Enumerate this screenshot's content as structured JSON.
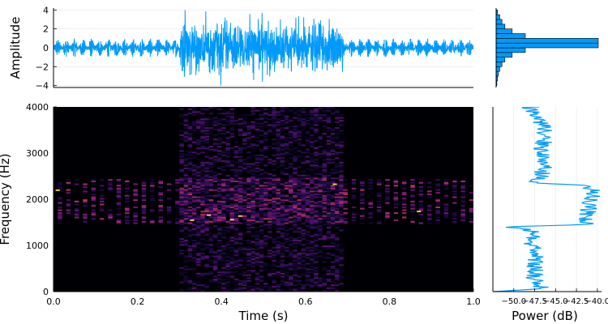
{
  "chart_data": [
    {
      "id": "waveform",
      "type": "line",
      "xlabel": "",
      "ylabel": "Amplitude",
      "xlim": [
        0,
        1
      ],
      "ylim": [
        -4.2,
        4.2
      ],
      "y_ticks": [
        -4,
        -2,
        0,
        2,
        4
      ],
      "y_tick_labels": [
        "−4",
        "−2",
        "0",
        "2",
        "4"
      ],
      "grid": true,
      "color": "#009AFA",
      "segments": [
        {
          "t_start": 0.0,
          "t_end": 0.3,
          "kind": "pulsed tones",
          "peak_amplitude": 1.0
        },
        {
          "t_start": 0.3,
          "t_end": 0.69,
          "kind": "noise burst",
          "peak_amplitude": 4.0
        },
        {
          "t_start": 0.69,
          "t_end": 1.0,
          "kind": "pulsed tones",
          "peak_amplitude": 1.0
        }
      ]
    },
    {
      "id": "amplitude-histogram",
      "type": "bar",
      "orientation": "horizontal",
      "bin_edges": [
        -4,
        -3.5,
        -3,
        -2.5,
        -2,
        -1.5,
        -1,
        -0.5,
        0,
        0.5,
        1,
        1.5,
        2,
        2.5,
        3,
        3.5,
        4
      ],
      "counts": [
        1,
        2,
        3,
        5,
        8,
        12,
        22,
        40,
        140,
        140,
        40,
        22,
        12,
        8,
        5,
        2
      ],
      "color": "#009AFA"
    },
    {
      "id": "spectrogram",
      "type": "heatmap",
      "xlabel": "Time (s)",
      "ylabel": "Frequency (Hz)",
      "xlim": [
        0,
        1
      ],
      "ylim": [
        0,
        4000
      ],
      "x_ticks": [
        0,
        0.2,
        0.4,
        0.6,
        0.8,
        1.0
      ],
      "x_tick_labels": [
        "0.0",
        "0.2",
        "0.4",
        "0.6",
        "0.8",
        "1.0"
      ],
      "y_ticks": [
        0,
        1000,
        2000,
        3000,
        4000
      ],
      "y_tick_labels": [
        "0",
        "1000",
        "2000",
        "3000",
        "4000"
      ],
      "colormap": "inferno",
      "background_color": "#000004",
      "hot_cells": [
        {
          "t": 0.005,
          "f": 2180
        },
        {
          "t": 0.325,
          "f": 1530
        },
        {
          "t": 0.365,
          "f": 1640
        },
        {
          "t": 0.42,
          "f": 1540
        },
        {
          "t": 0.44,
          "f": 1620
        },
        {
          "t": 0.665,
          "f": 2310
        },
        {
          "t": 0.865,
          "f": 1720
        }
      ]
    },
    {
      "id": "power-spectrum",
      "type": "line",
      "xlabel": "Power (dB)",
      "ylabel": "",
      "orientation": "vertical",
      "x_tick_labels": [
        "−50.0",
        "−47.5",
        "−45.0",
        "−42.5",
        "−40.0"
      ],
      "x_ticks": [
        -50,
        -47.5,
        -45,
        -42.5,
        -40
      ],
      "xlim": [
        -52.5,
        -39.5
      ],
      "ylim": [
        0,
        4000
      ],
      "grid": true,
      "color": "#009AFA",
      "profile": [
        {
          "f": 0,
          "p": -52.4
        },
        {
          "f": 60,
          "p": -46.8
        },
        {
          "f": 300,
          "p": -47.6
        },
        {
          "f": 700,
          "p": -47.3
        },
        {
          "f": 1100,
          "p": -47.8
        },
        {
          "f": 1350,
          "p": -48.0
        },
        {
          "f": 1400,
          "p": -51.5
        },
        {
          "f": 1450,
          "p": -41.5
        },
        {
          "f": 1700,
          "p": -41.2
        },
        {
          "f": 2000,
          "p": -40.8
        },
        {
          "f": 2200,
          "p": -40.6
        },
        {
          "f": 2300,
          "p": -41.5
        },
        {
          "f": 2350,
          "p": -47.2
        },
        {
          "f": 2700,
          "p": -46.3
        },
        {
          "f": 3100,
          "p": -46.6
        },
        {
          "f": 3500,
          "p": -46.2
        },
        {
          "f": 3800,
          "p": -47.4
        },
        {
          "f": 3990,
          "p": -48.0
        }
      ]
    }
  ]
}
